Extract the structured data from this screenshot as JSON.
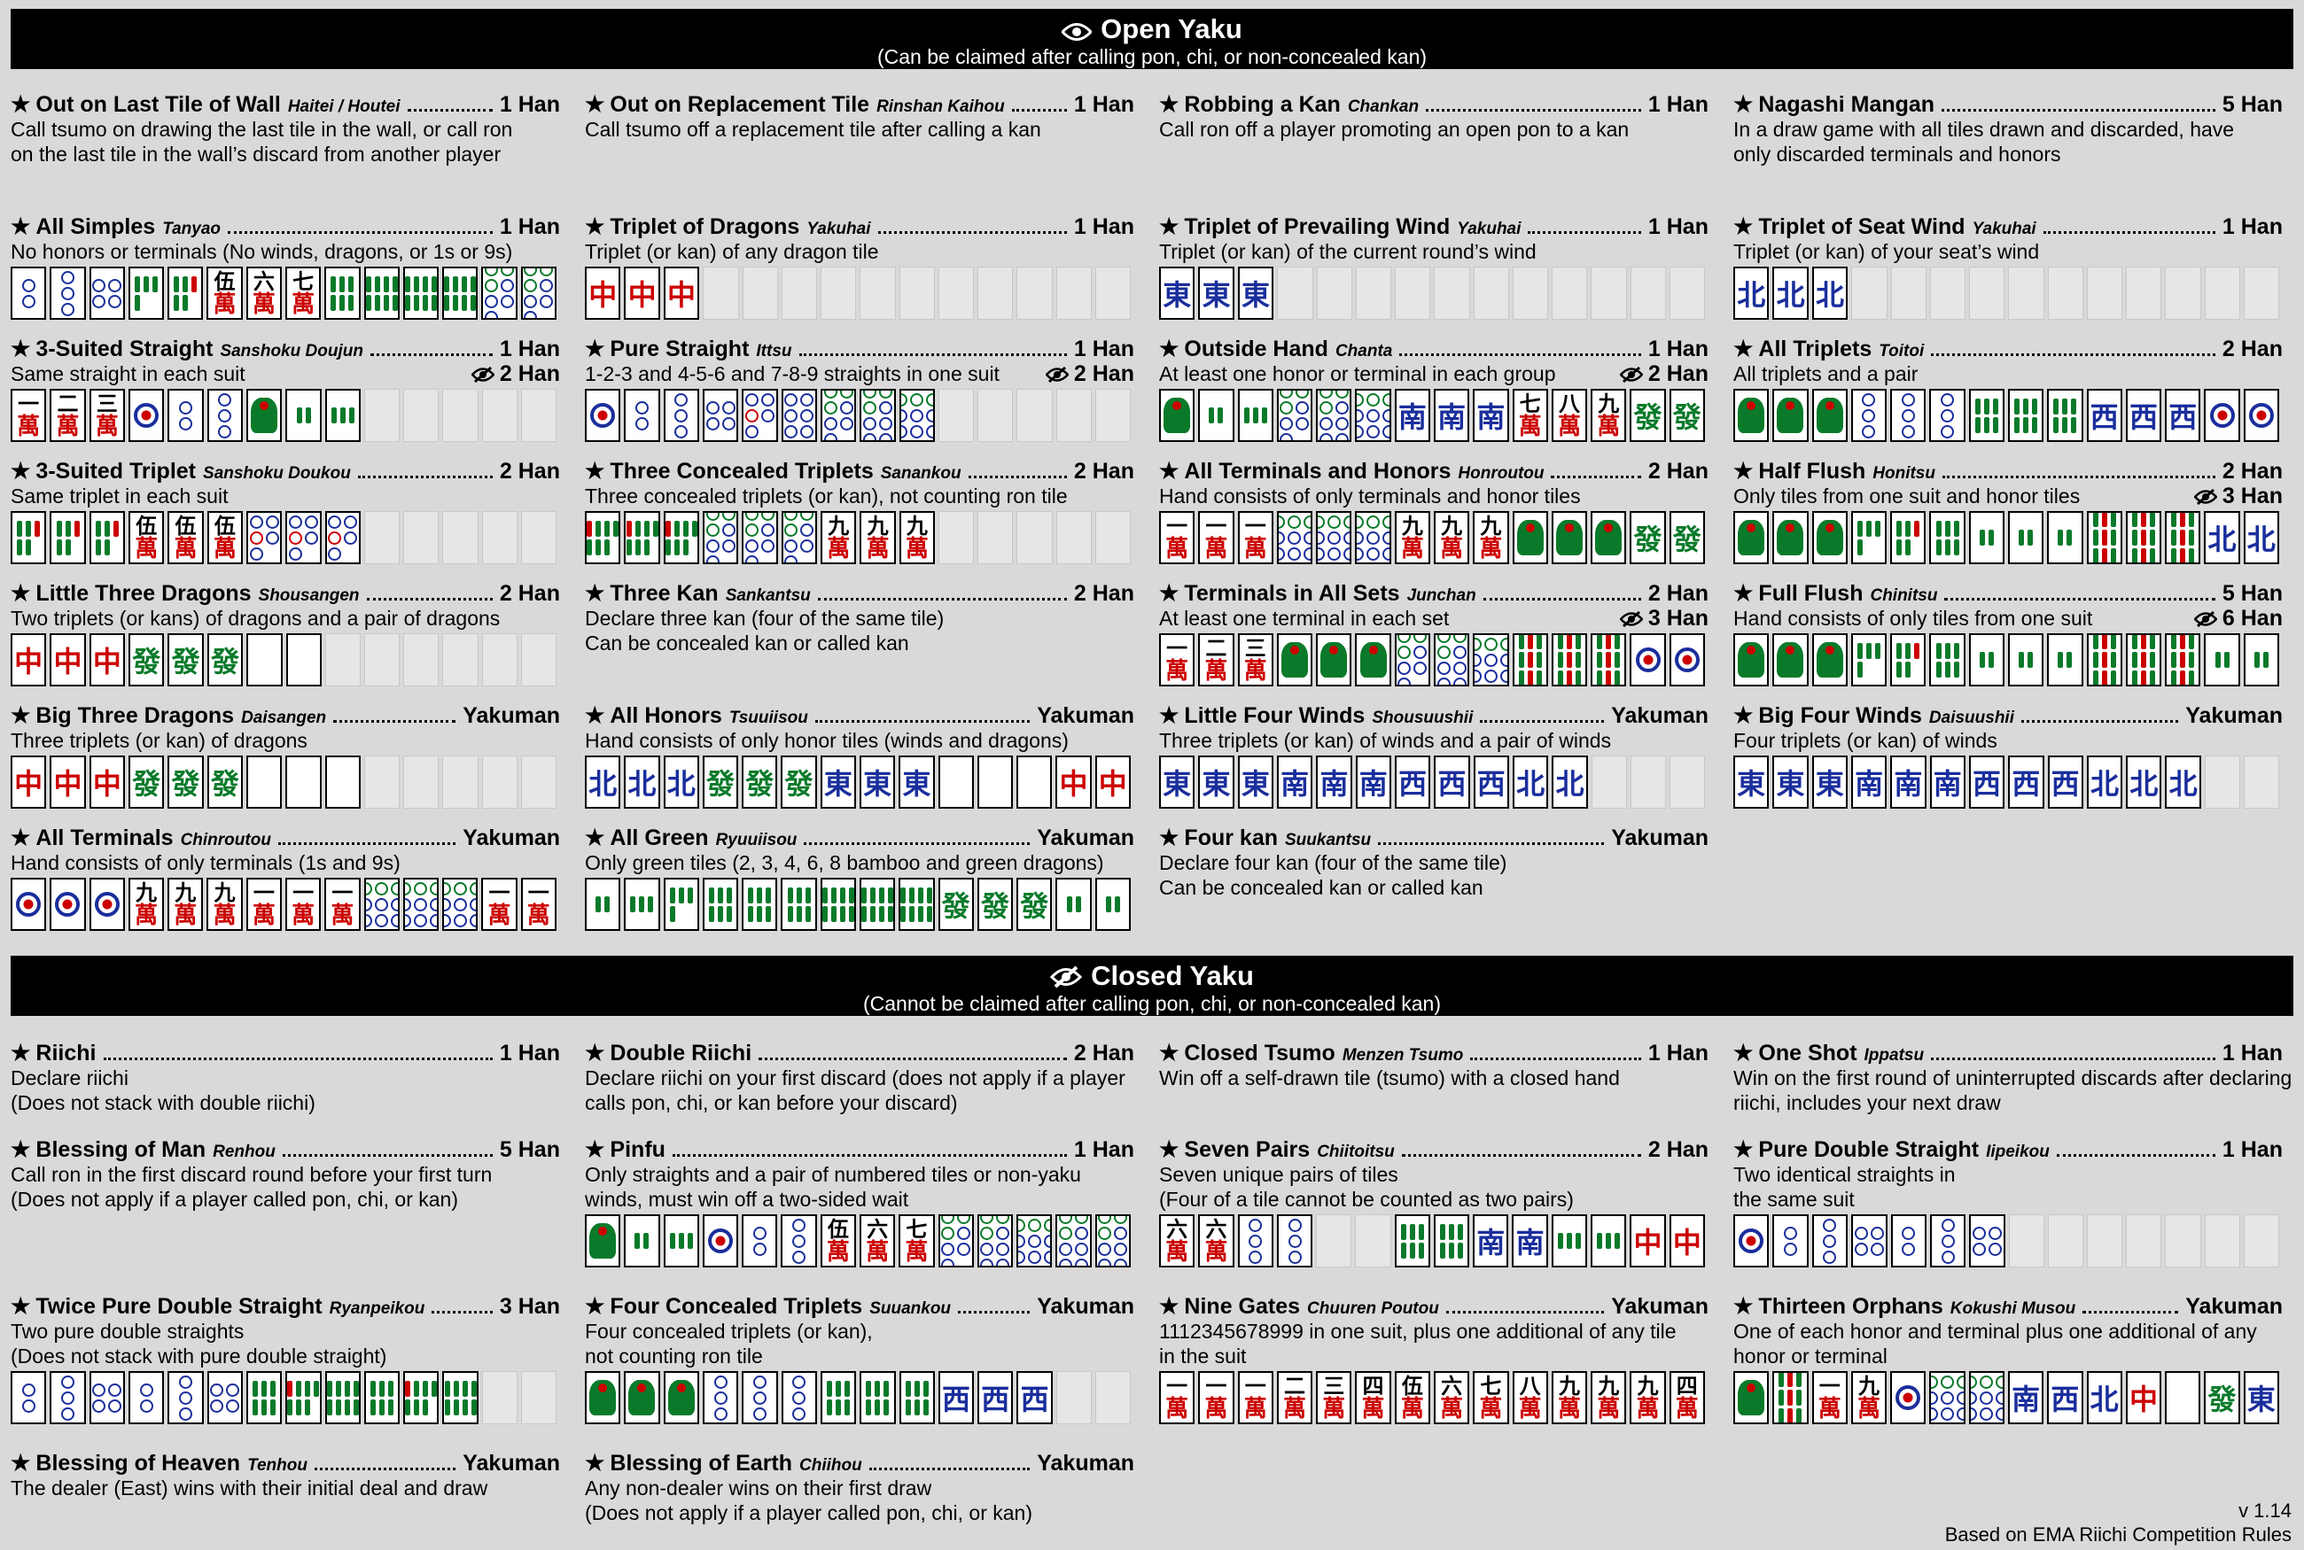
{
  "open": {
    "title": "Open Yaku",
    "subtitle": "(Can be claimed after calling pon, chi, or non-concealed kan)"
  },
  "closed": {
    "title": "Closed Yaku",
    "subtitle": "(Cannot be claimed after calling pon, chi, or non-concealed kan)"
  },
  "footer": {
    "version": "v 1.14",
    "source": "Based on EMA Riichi Competition Rules"
  },
  "colors": {
    "banner": "#000000",
    "background": "#d9d9d9",
    "man_red": "#c00000",
    "wind_blue": "#1a2e9c",
    "bamboo_green": "#0a7a2a"
  },
  "tile_legend": "m=characters, p=circles, s=bamboo, E/S/W/N=winds, R/G/W_=dragons (Wh=white), -=empty slot",
  "open_yaku": [
    {
      "name": "Out on Last Tile of Wall",
      "romaji": "Haitei / Houtei",
      "han": "1 Han",
      "lines": [
        "Call tsumo on drawing the last tile in the wall, or call ron",
        "on the last tile in the wall’s discard from another player"
      ],
      "tiles": []
    },
    {
      "name": "Out on Replacement Tile",
      "romaji": "Rinshan Kaihou",
      "han": "1 Han",
      "lines": [
        "Call tsumo off a replacement tile after calling a kan"
      ],
      "tiles": []
    },
    {
      "name": "Robbing a Kan",
      "romaji": "Chankan",
      "han": "1 Han",
      "lines": [
        "Call ron off a player promoting an open pon to a kan"
      ],
      "tiles": []
    },
    {
      "name": "Nagashi Mangan",
      "romaji": "",
      "han": "5 Han",
      "lines": [
        "In a draw game with all tiles drawn and discarded, have",
        "only discarded terminals and honors"
      ],
      "tiles": []
    },
    {
      "name": "All Simples",
      "romaji": "Tanyao",
      "han": "1 Han",
      "lines": [
        "No honors or terminals (No winds, dragons, or 1s or 9s)"
      ],
      "tiles": [
        "2p",
        "3p",
        "4p",
        "4s",
        "5s",
        "5m",
        "6m",
        "7m",
        "6s",
        "8s",
        "8s",
        "8s",
        "7p",
        "7p"
      ]
    },
    {
      "name": "Triplet of Dragons",
      "romaji": "Yakuhai",
      "han": "1 Han",
      "lines": [
        "Triplet (or kan) of any dragon tile"
      ],
      "tiles": [
        "R",
        "R",
        "R",
        "-",
        "-",
        "-",
        "-",
        "-",
        "-",
        "-",
        "-",
        "-",
        "-",
        "-"
      ]
    },
    {
      "name": "Triplet of Prevailing Wind",
      "romaji": "Yakuhai",
      "han": "1 Han",
      "lines": [
        "Triplet (or kan) of the current round’s wind"
      ],
      "tiles": [
        "E",
        "E",
        "E",
        "-",
        "-",
        "-",
        "-",
        "-",
        "-",
        "-",
        "-",
        "-",
        "-",
        "-"
      ]
    },
    {
      "name": "Triplet of Seat Wind",
      "romaji": "Yakuhai",
      "han": "1 Han",
      "lines": [
        "Triplet (or kan) of your seat’s wind"
      ],
      "tiles": [
        "N",
        "N",
        "N",
        "-",
        "-",
        "-",
        "-",
        "-",
        "-",
        "-",
        "-",
        "-",
        "-",
        "-"
      ]
    },
    {
      "name": "3-Suited Straight",
      "romaji": "Sanshoku Doujun",
      "han": "1 Han",
      "closed_han": "2 Han",
      "lines": [
        "Same straight in each suit"
      ],
      "tiles": [
        "1m",
        "2m",
        "3m",
        "1p",
        "2p",
        "3p",
        "1s",
        "2s",
        "3s",
        "-",
        "-",
        "-",
        "-",
        "-"
      ]
    },
    {
      "name": "Pure Straight",
      "romaji": "Ittsu",
      "han": "1 Han",
      "closed_han": "2 Han",
      "lines": [
        "1-2-3 and 4-5-6 and 7-8-9 straights in one suit"
      ],
      "tiles": [
        "1p",
        "2p",
        "3p",
        "4p",
        "5p",
        "6p",
        "7p",
        "8p",
        "9p",
        "-",
        "-",
        "-",
        "-",
        "-"
      ]
    },
    {
      "name": "Outside Hand",
      "romaji": "Chanta",
      "han": "1 Han",
      "closed_han": "2 Han",
      "lines": [
        "At least one honor or terminal in each group"
      ],
      "tiles": [
        "1s",
        "2s",
        "3s",
        "7p",
        "8p",
        "9p",
        "S",
        "S",
        "S",
        "7m",
        "8m",
        "9m",
        "G",
        "G"
      ]
    },
    {
      "name": "All Triplets",
      "romaji": "Toitoi",
      "han": "2 Han",
      "lines": [
        "All triplets and a pair"
      ],
      "tiles": [
        "1s",
        "1s",
        "1s",
        "3p",
        "3p",
        "3p",
        "6s",
        "6s",
        "6s",
        "W",
        "W",
        "W",
        "1p",
        "1p"
      ]
    },
    {
      "name": "3-Suited Triplet",
      "romaji": "Sanshoku Doukou",
      "han": "2 Han",
      "lines": [
        "Same triplet in each suit"
      ],
      "tiles": [
        "5s",
        "5s",
        "5s",
        "5m",
        "5m",
        "5m",
        "5p",
        "5p",
        "5p",
        "-",
        "-",
        "-",
        "-",
        "-"
      ]
    },
    {
      "name": "Three Concealed Triplets",
      "romaji": "Sanankou",
      "han": "2 Han",
      "lines": [
        "Three concealed triplets (or kan), not counting ron tile"
      ],
      "tiles": [
        "7s",
        "7s",
        "7s",
        "7p",
        "7p",
        "7p",
        "9m",
        "9m",
        "9m",
        "-",
        "-",
        "-",
        "-",
        "-"
      ]
    },
    {
      "name": "All Terminals and Honors",
      "romaji": "Honroutou",
      "han": "2 Han",
      "lines": [
        "Hand consists of only terminals and honor tiles"
      ],
      "tiles": [
        "1m",
        "1m",
        "1m",
        "9p",
        "9p",
        "9p",
        "9m",
        "9m",
        "9m",
        "1s",
        "1s",
        "1s",
        "G",
        "G"
      ]
    },
    {
      "name": "Half Flush",
      "romaji": "Honitsu",
      "han": "2 Han",
      "closed_han": "3 Han",
      "lines": [
        "Only tiles from one suit and honor tiles"
      ],
      "tiles": [
        "1s",
        "1s",
        "1s",
        "4s",
        "5s",
        "6s",
        "2s",
        "2s",
        "2s",
        "9s",
        "9s",
        "9s",
        "N",
        "N"
      ]
    },
    {
      "name": "Little Three Dragons",
      "romaji": "Shousangen",
      "han": "2 Han",
      "lines": [
        "Two triplets (or kans) of dragons and a pair of dragons"
      ],
      "tiles": [
        "R",
        "R",
        "R",
        "G",
        "G",
        "G",
        "Wh",
        "Wh",
        "-",
        "-",
        "-",
        "-",
        "-",
        "-"
      ]
    },
    {
      "name": "Three Kan",
      "romaji": "Sankantsu",
      "han": "2 Han",
      "lines": [
        "Declare three kan (four of the same tile)",
        "Can be concealed kan or called kan"
      ],
      "tiles": []
    },
    {
      "name": "Terminals in All Sets",
      "romaji": "Junchan",
      "han": "2 Han",
      "closed_han": "3 Han",
      "lines": [
        "At least one terminal in each set"
      ],
      "tiles": [
        "1m",
        "2m",
        "3m",
        "1s",
        "1s",
        "1s",
        "7p",
        "8p",
        "9p",
        "9s",
        "9s",
        "9s",
        "1p",
        "1p"
      ]
    },
    {
      "name": "Full Flush",
      "romaji": "Chinitsu",
      "han": "5 Han",
      "closed_han": "6 Han",
      "lines": [
        "Hand consists of only tiles from one suit"
      ],
      "tiles": [
        "1s",
        "1s",
        "1s",
        "4s",
        "5s",
        "6s",
        "2s",
        "2s",
        "2s",
        "9s",
        "9s",
        "9s",
        "2s",
        "2s"
      ]
    },
    {
      "name": "Big Three Dragons",
      "romaji": "Daisangen",
      "han": "Yakuman",
      "lines": [
        "Three triplets (or kan) of dragons"
      ],
      "tiles": [
        "R",
        "R",
        "R",
        "G",
        "G",
        "G",
        "Wh",
        "Wh",
        "Wh",
        "-",
        "-",
        "-",
        "-",
        "-"
      ]
    },
    {
      "name": "All Honors",
      "romaji": "Tsuuiisou",
      "han": "Yakuman",
      "lines": [
        "Hand consists of only honor tiles (winds and dragons)"
      ],
      "tiles": [
        "N",
        "N",
        "N",
        "G",
        "G",
        "G",
        "E",
        "E",
        "E",
        "Wh",
        "Wh",
        "Wh",
        "R",
        "R"
      ]
    },
    {
      "name": "Little Four Winds",
      "romaji": "Shousuushii",
      "han": "Yakuman",
      "lines": [
        "Three triplets (or kan) of winds and a pair of winds"
      ],
      "tiles": [
        "E",
        "E",
        "E",
        "S",
        "S",
        "S",
        "W",
        "W",
        "W",
        "N",
        "N",
        "-",
        "-",
        "-"
      ]
    },
    {
      "name": "Big Four Winds",
      "romaji": "Daisuushii",
      "han": "Yakuman",
      "lines": [
        "Four triplets (or kan) of winds"
      ],
      "tiles": [
        "E",
        "E",
        "E",
        "S",
        "S",
        "S",
        "W",
        "W",
        "W",
        "N",
        "N",
        "N",
        "-",
        "-"
      ]
    },
    {
      "name": "All Terminals",
      "romaji": "Chinroutou",
      "han": "Yakuman",
      "lines": [
        "Hand consists of only terminals (1s and 9s)"
      ],
      "tiles": [
        "1p",
        "1p",
        "1p",
        "9m",
        "9m",
        "9m",
        "1m",
        "1m",
        "1m",
        "9p",
        "9p",
        "9p",
        "1m",
        "1m"
      ]
    },
    {
      "name": "All Green",
      "romaji": "Ryuuiisou",
      "han": "Yakuman",
      "lines": [
        "Only green tiles (2, 3, 4, 6, 8 bamboo and green dragons)"
      ],
      "tiles": [
        "2s",
        "3s",
        "4s",
        "6s",
        "6s",
        "6s",
        "8s",
        "8s",
        "8s",
        "G",
        "G",
        "G",
        "2s",
        "2s"
      ]
    },
    {
      "name": "Four kan",
      "romaji": "Suukantsu",
      "han": "Yakuman",
      "lines": [
        "Declare four kan (four of the same tile)",
        "Can be concealed kan or called kan"
      ],
      "tiles": []
    }
  ],
  "closed_yaku": [
    {
      "name": "Riichi",
      "romaji": "",
      "han": "1 Han",
      "lines": [
        "Declare riichi",
        "(Does not stack with double riichi)"
      ],
      "tiles": []
    },
    {
      "name": "Double Riichi",
      "romaji": "",
      "han": "2 Han",
      "lines": [
        "Declare riichi on your first discard (does not apply if a player",
        "calls pon, chi, or kan before your discard)"
      ],
      "tiles": []
    },
    {
      "name": "Closed Tsumo",
      "romaji": "Menzen Tsumo",
      "han": "1 Han",
      "lines": [
        "Win off a self-drawn tile (tsumo) with a closed hand"
      ],
      "tiles": []
    },
    {
      "name": "One Shot",
      "romaji": "Ippatsu",
      "han": "1 Han",
      "lines": [
        "Win on the first round of uninterrupted discards after declaring",
        "riichi, includes your next draw"
      ],
      "tiles": []
    },
    {
      "name": "Blessing of Man",
      "romaji": "Renhou",
      "han": "5 Han",
      "lines": [
        "Call ron in the first discard round before your first turn",
        "(Does not apply if a player called pon, chi, or kan)"
      ],
      "tiles": []
    },
    {
      "name": "Pinfu",
      "romaji": "",
      "han": "1 Han",
      "lines": [
        "Only straights and a pair of numbered tiles or non-yaku",
        "winds, must win off a two-sided wait"
      ],
      "tiles": [
        "1s",
        "2s",
        "3s",
        "1p",
        "2p",
        "3p",
        "5m",
        "6m",
        "7m",
        "7p",
        "8p",
        "9p",
        "8p",
        "8p"
      ]
    },
    {
      "name": "Seven Pairs",
      "romaji": "Chiitoitsu",
      "han": "2 Han",
      "lines": [
        "Seven unique pairs of tiles",
        "(Four of a tile cannot be counted as two pairs)"
      ],
      "tiles": [
        "6m",
        "6m",
        "3p",
        "3p",
        "-",
        "-",
        "6s",
        "6s",
        "S",
        "S",
        "3s",
        "3s",
        "R",
        "R"
      ]
    },
    {
      "name": "Pure Double Straight",
      "romaji": "Iipeikou",
      "han": "1 Han",
      "lines": [
        "Two identical straights in",
        "the same suit"
      ],
      "tiles": [
        "1p",
        "2p",
        "3p",
        "4p",
        "2p",
        "3p",
        "4p",
        "-",
        "-",
        "-",
        "-",
        "-",
        "-",
        "-"
      ]
    },
    {
      "name": "Twice Pure Double Straight",
      "romaji": "Ryanpeikou",
      "han": "3 Han",
      "lines": [
        "Two pure double straights",
        "(Does not stack with pure double straight)"
      ],
      "tiles": [
        "2p",
        "3p",
        "4p",
        "2p",
        "3p",
        "4p",
        "6s",
        "7s",
        "8s",
        "6s",
        "7s",
        "8s",
        "-",
        "-"
      ]
    },
    {
      "name": "Four Concealed Triplets",
      "romaji": "Suuankou",
      "han": "Yakuman",
      "lines": [
        "Four concealed triplets (or kan),",
        "not counting ron tile"
      ],
      "tiles": [
        "1s",
        "1s",
        "1s",
        "3p",
        "3p",
        "3p",
        "6s",
        "6s",
        "6s",
        "W",
        "W",
        "W",
        "-",
        "-"
      ]
    },
    {
      "name": "Nine Gates",
      "romaji": "Chuuren Poutou",
      "han": "Yakuman",
      "lines": [
        "1112345678999 in one suit, plus one additional of any tile",
        "in the suit"
      ],
      "tiles": [
        "1m",
        "1m",
        "1m",
        "2m",
        "3m",
        "4m",
        "5m",
        "6m",
        "7m",
        "8m",
        "9m",
        "9m",
        "9m",
        "4m"
      ]
    },
    {
      "name": "Thirteen Orphans",
      "romaji": "Kokushi Musou",
      "han": "Yakuman",
      "lines": [
        "One of each honor and terminal plus one additional of any",
        "honor or terminal"
      ],
      "tiles": [
        "1s",
        "9s",
        "1m",
        "9m",
        "1p",
        "9p",
        "9p",
        "S",
        "W",
        "N",
        "R",
        "Wh",
        "G",
        "E"
      ]
    },
    {
      "name": "Blessing of Heaven",
      "romaji": "Tenhou",
      "han": "Yakuman",
      "lines": [
        "The dealer (East) wins with their initial deal and draw"
      ],
      "tiles": []
    },
    {
      "name": "Blessing of Earth",
      "romaji": "Chiihou",
      "han": "Yakuman",
      "lines": [
        "Any non-dealer wins on their first draw",
        "(Does not apply if a player called pon, chi, or kan)"
      ],
      "tiles": []
    }
  ]
}
